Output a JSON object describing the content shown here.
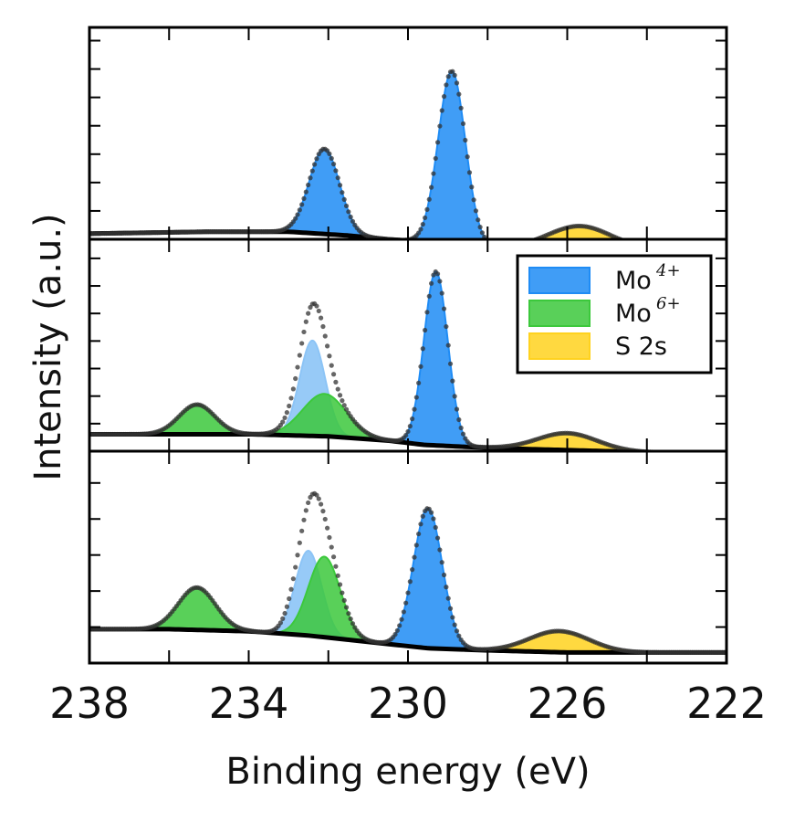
{
  "chart_data": {
    "type": "area",
    "xlabel": "Binding energy (eV)",
    "ylabel": "Intensity (a.u.)",
    "xlim": [
      238,
      222
    ],
    "x_reversed": true,
    "xticks": [
      238,
      234,
      230,
      226,
      222
    ],
    "legend": {
      "placement": "middle-panel top-right",
      "entries": [
        {
          "key": "mo4",
          "label": "Mo",
          "sup": "4+"
        },
        {
          "key": "mo6",
          "label": "Mo",
          "sup": "6+"
        },
        {
          "key": "s2s",
          "label": "S 2s",
          "sup": ""
        }
      ]
    },
    "colors": {
      "mo4": "#1f8cf5",
      "mo4_light": "#8cc4f6",
      "mo6": "#3cc83c",
      "s2s": "#ffd21f",
      "data": "#333333",
      "background": "#000000"
    },
    "panels": [
      {
        "ylim": [
          0,
          1.12
        ],
        "yticks": [
          0.0,
          0.15,
          0.3,
          0.45,
          0.6,
          0.75,
          0.9,
          1.05
        ],
        "background": {
          "x": [
            238,
            235,
            233,
            231.5,
            230.5,
            229.8,
            229,
            228,
            226,
            224,
            222
          ],
          "y": [
            0.03,
            0.04,
            0.04,
            0.02,
            0.0,
            -0.01,
            -0.03,
            -0.04,
            -0.05,
            -0.05,
            -0.05
          ]
        },
        "peaks": [
          {
            "component": "mo4",
            "center": 232.1,
            "height": 0.45,
            "sigma": 0.38,
            "shade": "normal"
          },
          {
            "component": "mo4",
            "center": 228.9,
            "height": 0.92,
            "sigma": 0.34,
            "shade": "normal"
          },
          {
            "component": "s2s",
            "center": 225.7,
            "height": 0.12,
            "sigma": 0.78,
            "shade": "normal"
          }
        ]
      },
      {
        "ylim": [
          0,
          1.0
        ],
        "yticks": [
          0.0,
          0.13,
          0.26,
          0.39,
          0.52,
          0.65,
          0.78,
          0.91
        ],
        "background": {
          "x": [
            238,
            236,
            234,
            232,
            230.5,
            229.6,
            228.5,
            227,
            225,
            223,
            222
          ],
          "y": [
            0.08,
            0.08,
            0.08,
            0.07,
            0.05,
            0.03,
            0.02,
            0.01,
            0.0,
            -0.01,
            -0.02
          ]
        },
        "peaks": [
          {
            "component": "mo6",
            "center": 235.3,
            "height": 0.14,
            "sigma": 0.45,
            "shade": "normal"
          },
          {
            "component": "mo4",
            "center": 232.4,
            "height": 0.45,
            "sigma": 0.32,
            "shade": "light"
          },
          {
            "component": "mo6",
            "center": 232.1,
            "height": 0.2,
            "sigma": 0.55,
            "shade": "normal"
          },
          {
            "component": "mo4",
            "center": 229.3,
            "height": 0.82,
            "sigma": 0.3,
            "shade": "normal"
          },
          {
            "component": "s2s",
            "center": 226.0,
            "height": 0.08,
            "sigma": 0.75,
            "shade": "normal"
          }
        ]
      },
      {
        "ylim": [
          0,
          1.0
        ],
        "yticks": [
          0.0,
          0.17,
          0.34,
          0.51,
          0.68,
          0.85
        ],
        "background": {
          "x": [
            238,
            236,
            234,
            232.5,
            231.5,
            230.5,
            229.5,
            228,
            226,
            224,
            222
          ],
          "y": [
            0.16,
            0.16,
            0.15,
            0.13,
            0.11,
            0.09,
            0.07,
            0.06,
            0.05,
            0.05,
            0.05
          ]
        },
        "peaks": [
          {
            "component": "mo6",
            "center": 235.3,
            "height": 0.2,
            "sigma": 0.47,
            "shade": "normal"
          },
          {
            "component": "mo4",
            "center": 232.5,
            "height": 0.4,
            "sigma": 0.33,
            "shade": "light"
          },
          {
            "component": "mo6",
            "center": 232.1,
            "height": 0.38,
            "sigma": 0.4,
            "shade": "normal"
          },
          {
            "component": "mo4",
            "center": 229.5,
            "height": 0.66,
            "sigma": 0.36,
            "shade": "normal"
          },
          {
            "component": "s2s",
            "center": 226.2,
            "height": 0.1,
            "sigma": 0.75,
            "shade": "normal"
          }
        ]
      }
    ]
  }
}
